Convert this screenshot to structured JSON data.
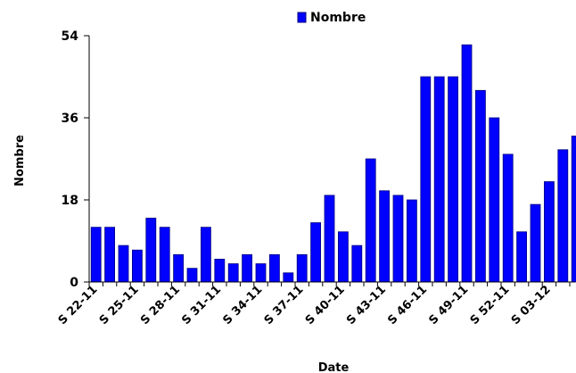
{
  "chart_data": {
    "type": "bar",
    "xlabel": "Date",
    "ylabel": "Nombre",
    "ylim": [
      0,
      54
    ],
    "yticks": [
      0,
      18,
      36,
      54
    ],
    "grid": false,
    "legend_position": "top-center",
    "bar_color": "#0000ff",
    "bar_edge_color": "#000080",
    "series": [
      {
        "name": "Nombre",
        "values": [
          12,
          12,
          8,
          7,
          14,
          12,
          6,
          3,
          12,
          5,
          4,
          6,
          4,
          6,
          2,
          6,
          13,
          19,
          11,
          8,
          27,
          20,
          19,
          18,
          45,
          45,
          45,
          52,
          42,
          36,
          28,
          11,
          17,
          22,
          29,
          32
        ]
      }
    ],
    "x_tick_labels": [
      {
        "index": 0,
        "label": "S 22-11"
      },
      {
        "index": 3,
        "label": "S 25-11"
      },
      {
        "index": 6,
        "label": "S 28-11"
      },
      {
        "index": 9,
        "label": "S 31-11"
      },
      {
        "index": 12,
        "label": "S 34-11"
      },
      {
        "index": 15,
        "label": "S 37-11"
      },
      {
        "index": 18,
        "label": "S 40-11"
      },
      {
        "index": 21,
        "label": "S 43-11"
      },
      {
        "index": 24,
        "label": "S 46-11"
      },
      {
        "index": 27,
        "label": "S 49-11"
      },
      {
        "index": 30,
        "label": "S 52-11"
      },
      {
        "index": 33,
        "label": "S 03-12"
      }
    ]
  }
}
